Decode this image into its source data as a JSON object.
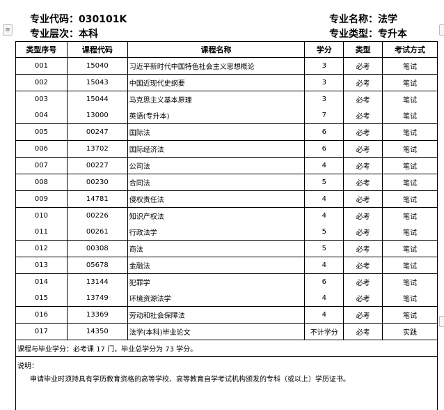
{
  "header": {
    "major_code": "专业代码：030101K",
    "major_name": "专业名称：法学",
    "level": "专业层次：本科",
    "type": "专业类型：专升本"
  },
  "table": {
    "columns": [
      "类型序号",
      "课程代码",
      "课程名称",
      "学分",
      "类型",
      "考试方式"
    ],
    "rows": [
      [
        "001",
        "15040",
        "习近平新时代中国特色社会主义思想概论",
        "3",
        "必考",
        "笔试"
      ],
      [
        "002",
        "15043",
        "中国近现代史纲要",
        "3",
        "必考",
        "笔试"
      ],
      [
        "003",
        "15044",
        "马克思主义基本原理",
        "3",
        "必考",
        "笔试"
      ],
      [
        "004",
        "13000",
        "英语(专升本)",
        "7",
        "必考",
        "笔试"
      ],
      [
        "005",
        "00247",
        "国际法",
        "6",
        "必考",
        "笔试"
      ],
      [
        "006",
        "13702",
        "国际经济法",
        "6",
        "必考",
        "笔试"
      ],
      [
        "007",
        "00227",
        "公司法",
        "4",
        "必考",
        "笔试"
      ],
      [
        "008",
        "00230",
        "合同法",
        "5",
        "必考",
        "笔试"
      ],
      [
        "009",
        "14781",
        "侵权责任法",
        "4",
        "必考",
        "笔试"
      ],
      [
        "010",
        "00226",
        "知识产权法",
        "4",
        "必考",
        "笔试"
      ],
      [
        "011",
        "00261",
        "行政法学",
        "5",
        "必考",
        "笔试"
      ],
      [
        "012",
        "00308",
        "商法",
        "5",
        "必考",
        "笔试"
      ],
      [
        "013",
        "05678",
        "金融法",
        "4",
        "必考",
        "笔试"
      ],
      [
        "014",
        "13144",
        "犯罪学",
        "6",
        "必考",
        "笔试"
      ],
      [
        "015",
        "13749",
        "环境资源法学",
        "4",
        "必考",
        "笔试"
      ],
      [
        "016",
        "13369",
        "劳动和社会保障法",
        "4",
        "必考",
        "笔试"
      ],
      [
        "017",
        "14350",
        "法学(本科)毕业论文",
        "不计学分",
        "必考",
        "实践"
      ]
    ],
    "summary": "课程与毕业学分：必考课 17 门，毕业总学分为 73 学分。",
    "notes_title": "说明：",
    "notes_body": "申请毕业时须持具有学历教育资格的高等学校、高等教育自学考试机构颁发的专科（或以上）学历证书。"
  }
}
